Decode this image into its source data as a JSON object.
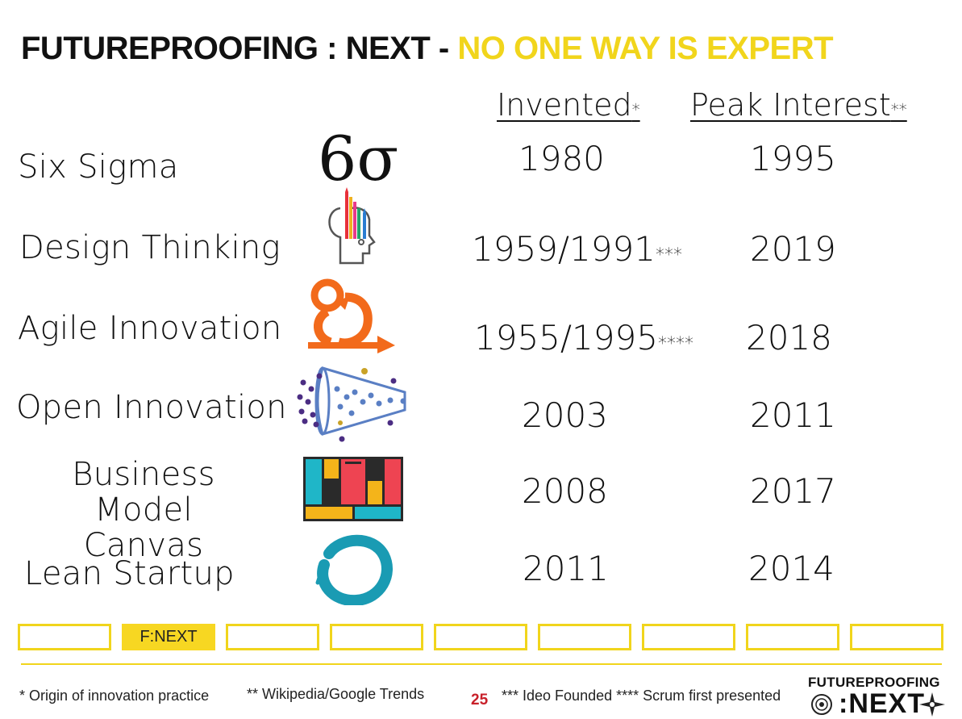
{
  "title": {
    "main": "FUTUREPROOFING : NEXT",
    "separator": " - ",
    "accent": "NO ONE WAY IS EXPERT"
  },
  "columns": {
    "invented": {
      "label": "Invented",
      "marker": "*"
    },
    "peak": {
      "label": "Peak Interest",
      "marker": "**"
    }
  },
  "rows": [
    {
      "label": "Six Sigma",
      "icon": "sigma-icon",
      "invented": "1980",
      "invented_suffix": "",
      "peak": "1995"
    },
    {
      "label": "Design Thinking",
      "icon": "head-pencils-icon",
      "invented": "1959/1991",
      "invented_suffix": "***",
      "peak": "2019"
    },
    {
      "label": "Agile Innovation",
      "icon": "agile-loop-icon",
      "invented": "1955/1995",
      "invented_suffix": "****",
      "peak": "2018"
    },
    {
      "label": "Open Innovation",
      "icon": "funnel-icon",
      "invented": "2003",
      "invented_suffix": "",
      "peak": "2011"
    },
    {
      "label": "Business Model Canvas",
      "label_line1": "Business Model",
      "label_line2": "Canvas",
      "icon": "canvas-grid-icon",
      "invented": "2008",
      "invented_suffix": "",
      "peak": "2017"
    },
    {
      "label": "Lean Startup",
      "icon": "enso-circle-icon",
      "invented": "2011",
      "invented_suffix": "",
      "peak": "2014"
    }
  ],
  "sigma_text": "6σ",
  "tabs": [
    "",
    "F:NEXT",
    "",
    "",
    "",
    "",
    "",
    "",
    ""
  ],
  "footer": {
    "note1": "* Origin of innovation practice",
    "note2": "** Wikipedia/Google Trends",
    "page": "25",
    "note3": "*** Ideo Founded **** Scrum first presented",
    "brand_line1": "FUTUREPROOFING",
    "brand_line2": ":NEXT"
  },
  "colors": {
    "accent": "#f1d51c",
    "tab_active": "#f7d722",
    "page_number": "#c8202a"
  }
}
